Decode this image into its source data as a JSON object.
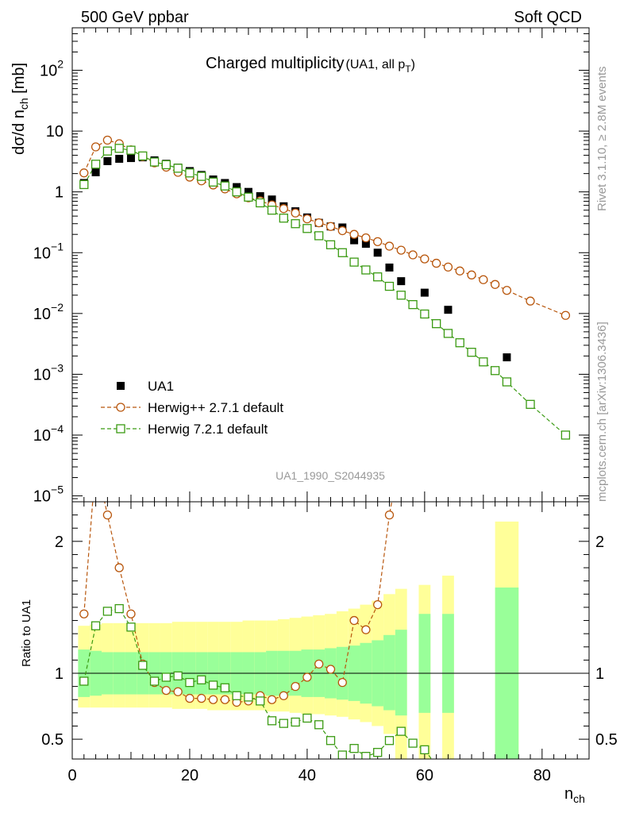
{
  "header": {
    "left": "500 GeV ppbar",
    "right": "Soft QCD"
  },
  "side_labels": {
    "rivet": "Rivet 3.1.10, ≥ 2.8M events",
    "mcplots": "mcplots.cern.ch [arXiv:1306.3436]"
  },
  "colors": {
    "data": "#000000",
    "herwigpp": "#b8560c",
    "herwig7": "#3a9a12",
    "band_inner": "#99ff99",
    "band_outer": "#ffff99",
    "side_text": "#999999"
  },
  "chart_data": [
    {
      "type": "scatter",
      "panel": "main",
      "title_main": "Charged multiplicity",
      "title_sub": "(UA1, all p",
      "title_sub_index": "T",
      "title_sub_end": ")",
      "watermark": "UA1_1990_S2044935",
      "ylabel": "dσ/d n",
      "ylabel_sub": "ch",
      "ylabel_unit": " [mb]",
      "yscale": "log",
      "ylim": [
        8e-06,
        500
      ],
      "xlim": [
        0,
        88
      ],
      "yticks": [
        {
          "label": "10",
          "sup": "2",
          "v": 100
        },
        {
          "label": "10",
          "sup": "",
          "v": 10
        },
        {
          "label": "1",
          "sup": "",
          "v": 1
        },
        {
          "label": "10",
          "sup": "−1",
          "v": 0.1
        },
        {
          "label": "10",
          "sup": "−2",
          "v": 0.01
        },
        {
          "label": "10",
          "sup": "−3",
          "v": 0.001
        },
        {
          "label": "10",
          "sup": "−4",
          "v": 0.0001
        },
        {
          "label": "10",
          "sup": "−5",
          "v": 1e-05
        }
      ],
      "legend_position": "lower-left",
      "series": [
        {
          "name": "UA1",
          "marker": "filled-square",
          "x": [
            2,
            4,
            6,
            8,
            10,
            12,
            14,
            16,
            18,
            20,
            22,
            24,
            26,
            28,
            30,
            32,
            34,
            36,
            38,
            40,
            42,
            44,
            46,
            48,
            50,
            52,
            54,
            56,
            60,
            64,
            74
          ],
          "y": [
            1.4,
            2.1,
            3.2,
            3.5,
            3.6,
            3.7,
            3.3,
            2.9,
            2.5,
            2.2,
            1.9,
            1.6,
            1.4,
            1.2,
            1.0,
            0.85,
            0.75,
            0.58,
            0.48,
            0.38,
            0.31,
            0.27,
            0.26,
            0.16,
            0.14,
            0.1,
            0.057,
            0.034,
            0.022,
            0.0115,
            0.0019
          ]
        },
        {
          "name": "Herwig++ 2.7.1 default",
          "marker": "open-circle",
          "x": [
            2,
            4,
            6,
            8,
            10,
            12,
            14,
            16,
            18,
            20,
            22,
            24,
            26,
            28,
            30,
            32,
            34,
            36,
            38,
            40,
            42,
            44,
            46,
            48,
            50,
            52,
            54,
            56,
            58,
            60,
            62,
            64,
            66,
            68,
            70,
            72,
            74,
            78,
            84
          ],
          "y": [
            2.05,
            5.5,
            7.1,
            6.2,
            4.9,
            3.8,
            3.0,
            2.55,
            2.1,
            1.75,
            1.52,
            1.3,
            1.12,
            0.93,
            0.8,
            0.71,
            0.61,
            0.53,
            0.45,
            0.36,
            0.31,
            0.27,
            0.23,
            0.2,
            0.175,
            0.152,
            0.128,
            0.11,
            0.092,
            0.079,
            0.067,
            0.058,
            0.05,
            0.043,
            0.036,
            0.03,
            0.024,
            0.016,
            0.0093
          ]
        },
        {
          "name": "Herwig 7.2.1 default",
          "marker": "open-square",
          "x": [
            2,
            4,
            6,
            8,
            10,
            12,
            14,
            16,
            18,
            20,
            22,
            24,
            26,
            28,
            30,
            32,
            34,
            36,
            38,
            40,
            42,
            44,
            46,
            48,
            50,
            52,
            54,
            56,
            58,
            60,
            62,
            64,
            66,
            68,
            70,
            72,
            74,
            78,
            84
          ],
          "y": [
            1.32,
            2.85,
            4.7,
            5.2,
            4.85,
            3.9,
            3.1,
            2.8,
            2.45,
            2.05,
            1.8,
            1.45,
            1.25,
            1.0,
            0.82,
            0.66,
            0.5,
            0.37,
            0.3,
            0.25,
            0.19,
            0.135,
            0.1,
            0.07,
            0.052,
            0.04,
            0.028,
            0.02,
            0.014,
            0.0098,
            0.0068,
            0.0047,
            0.0033,
            0.0023,
            0.0016,
            0.00115,
            0.00075,
            0.00032,
            0.0001
          ]
        }
      ]
    },
    {
      "type": "line",
      "panel": "ratio",
      "ylabel": "Ratio to UA1",
      "xlabel": "n",
      "xlabel_sub": "ch",
      "ylim": [
        0.35,
        2.3
      ],
      "xlim": [
        0,
        88
      ],
      "xticks": [
        0,
        20,
        40,
        60,
        80
      ],
      "yticks": [
        {
          "label": "0.5",
          "v": 0.5
        },
        {
          "label": "1",
          "v": 1
        },
        {
          "label": "2",
          "v": 2
        }
      ],
      "reference_line": 1,
      "uncertainty_bands": {
        "x_low": [
          1,
          3,
          5,
          7,
          9,
          11,
          13,
          15,
          17,
          19,
          21,
          23,
          25,
          27,
          29,
          31,
          33,
          35,
          37,
          39,
          41,
          43,
          45,
          47,
          49,
          51,
          53,
          55,
          59,
          63,
          72
        ],
        "x_high": [
          3,
          5,
          7,
          9,
          11,
          13,
          15,
          17,
          19,
          21,
          23,
          25,
          27,
          29,
          31,
          33,
          35,
          37,
          39,
          41,
          43,
          45,
          47,
          49,
          51,
          53,
          55,
          57,
          61,
          65,
          76
        ],
        "inner_low": [
          0.82,
          0.83,
          0.84,
          0.84,
          0.84,
          0.84,
          0.84,
          0.84,
          0.84,
          0.84,
          0.84,
          0.84,
          0.84,
          0.84,
          0.84,
          0.84,
          0.83,
          0.83,
          0.83,
          0.82,
          0.82,
          0.81,
          0.8,
          0.79,
          0.77,
          0.75,
          0.72,
          0.68,
          0.7,
          0.7,
          0.35
        ],
        "inner_high": [
          1.18,
          1.17,
          1.16,
          1.16,
          1.16,
          1.16,
          1.16,
          1.16,
          1.16,
          1.16,
          1.16,
          1.16,
          1.16,
          1.16,
          1.16,
          1.16,
          1.17,
          1.17,
          1.17,
          1.18,
          1.18,
          1.19,
          1.2,
          1.21,
          1.23,
          1.25,
          1.29,
          1.33,
          1.45,
          1.45,
          1.65
        ],
        "outer_low": [
          0.74,
          0.74,
          0.74,
          0.74,
          0.74,
          0.74,
          0.74,
          0.74,
          0.73,
          0.73,
          0.73,
          0.72,
          0.72,
          0.72,
          0.72,
          0.72,
          0.71,
          0.71,
          0.7,
          0.69,
          0.69,
          0.68,
          0.67,
          0.65,
          0.63,
          0.6,
          0.54,
          0.35,
          0.35,
          0.35,
          0.35
        ],
        "outer_high": [
          1.36,
          1.37,
          1.38,
          1.38,
          1.38,
          1.38,
          1.38,
          1.38,
          1.39,
          1.39,
          1.39,
          1.39,
          1.39,
          1.39,
          1.4,
          1.4,
          1.4,
          1.41,
          1.42,
          1.43,
          1.44,
          1.45,
          1.47,
          1.49,
          1.52,
          1.55,
          1.6,
          1.64,
          1.67,
          1.74,
          2.15
        ]
      },
      "series": [
        {
          "name": "Herwig++ 2.7.1 default",
          "x": [
            2,
            4,
            6,
            8,
            10,
            12,
            14,
            16,
            18,
            20,
            22,
            24,
            26,
            28,
            30,
            32,
            34,
            36,
            38,
            40,
            42,
            44,
            46,
            48,
            50,
            52,
            54,
            56
          ],
          "y": [
            1.45,
            2.6,
            2.2,
            1.8,
            1.45,
            1.07,
            0.93,
            0.87,
            0.86,
            0.81,
            0.81,
            0.8,
            0.8,
            0.78,
            0.79,
            0.83,
            0.8,
            0.83,
            0.9,
            0.97,
            1.07,
            1.03,
            0.93,
            1.4,
            1.33,
            1.52,
            2.2,
            2.7
          ]
        },
        {
          "name": "Herwig 7.2.1 default",
          "x": [
            2,
            4,
            6,
            8,
            10,
            12,
            14,
            16,
            18,
            20,
            22,
            24,
            26,
            28,
            30,
            32,
            34,
            36,
            38,
            40,
            42,
            44,
            46,
            48,
            50,
            52,
            54,
            56,
            58,
            60,
            62
          ],
          "y": [
            0.94,
            1.36,
            1.47,
            1.49,
            1.35,
            1.06,
            0.94,
            0.97,
            0.98,
            0.93,
            0.95,
            0.91,
            0.89,
            0.83,
            0.82,
            0.79,
            0.64,
            0.62,
            0.63,
            0.66,
            0.61,
            0.49,
            0.38,
            0.43,
            0.37,
            0.4,
            0.49,
            0.56,
            0.47,
            0.42,
            0.3
          ]
        }
      ]
    }
  ]
}
